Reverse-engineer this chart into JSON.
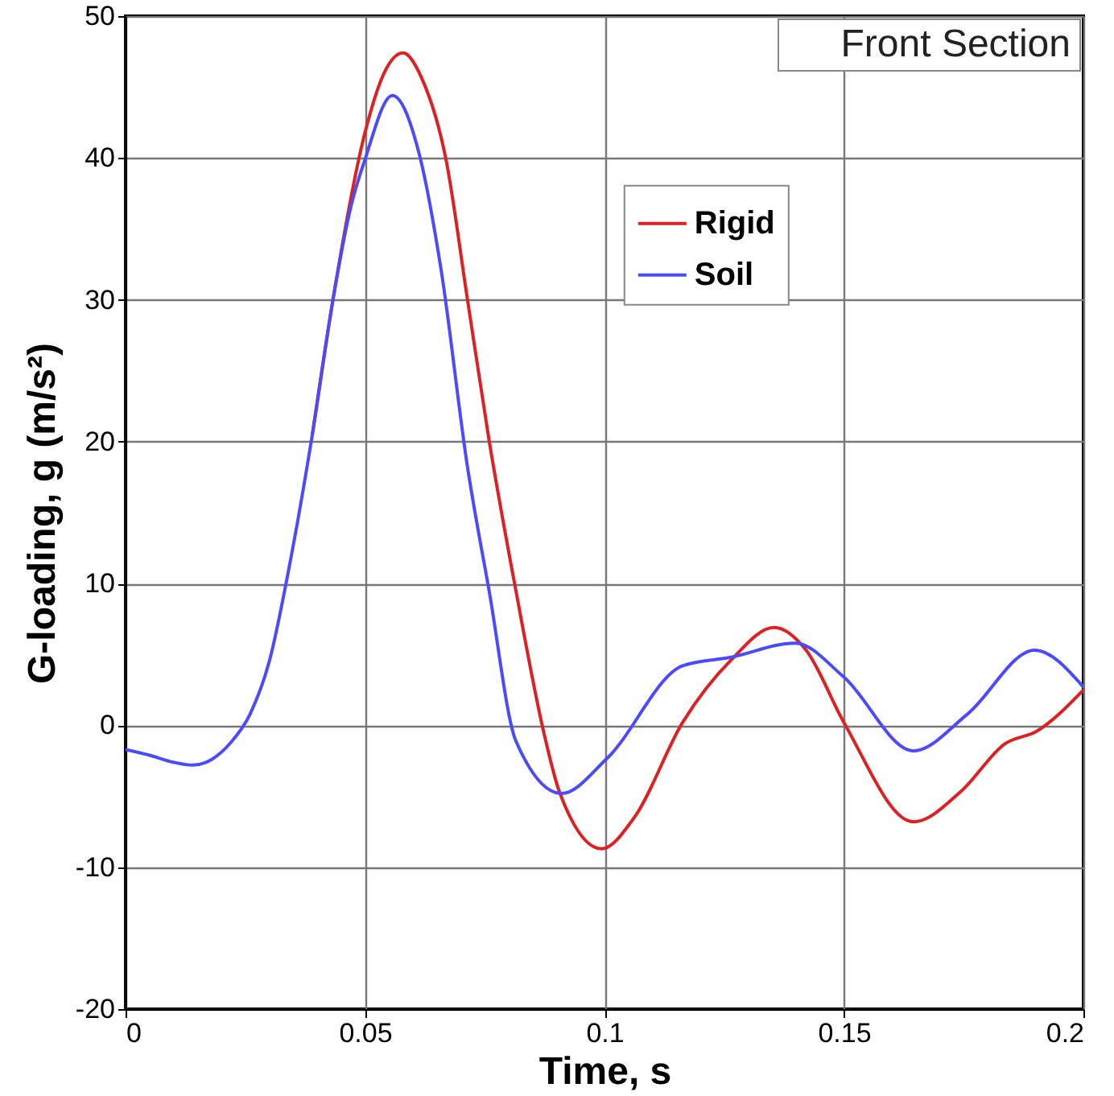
{
  "chart_data": {
    "type": "line",
    "xlabel": "Time, s",
    "ylabel": "G-loading, g (m/s²)",
    "xlim": [
      0,
      0.2
    ],
    "ylim": [
      -20,
      50
    ],
    "xticks": [
      0,
      0.05,
      0.1,
      0.15,
      0.2
    ],
    "yticks": [
      -20,
      -10,
      0,
      10,
      20,
      30,
      40,
      50
    ],
    "grid": true,
    "legend": "top right",
    "line_style": "solid",
    "annotations": [
      "Front Section"
    ],
    "series": [
      {
        "name": "Rigid",
        "color": "#e02020",
        "x": [
          0.039,
          0.0433,
          0.05,
          0.054,
          0.0579,
          0.062,
          0.0669,
          0.0714,
          0.0759,
          0.0815,
          0.0876,
          0.0905,
          0.0994,
          0.1062,
          0.1163,
          0.1264,
          0.1354,
          0.1421,
          0.15,
          0.1645,
          0.1746,
          0.1836,
          0.1903,
          0.2
        ],
        "values": [
          20.5,
          30,
          41.8,
          46,
          47.4,
          45.5,
          39.9,
          30,
          20.1,
          9.5,
          -0.9,
          -4.6,
          -8.7,
          -6.5,
          0.2,
          4.6,
          6.9,
          5.3,
          0.2,
          -6.8,
          -4.6,
          -1.3,
          -0.4,
          2.5
        ]
      },
      {
        "name": "Soil",
        "color": "#4a4aff",
        "x": [
          0,
          0.005,
          0.01,
          0.014,
          0.018,
          0.022,
          0.026,
          0.03,
          0.0343,
          0.039,
          0.0433,
          0.047,
          0.05,
          0.0557,
          0.0613,
          0.0658,
          0.0714,
          0.0759,
          0.0815,
          0.091,
          0.1006,
          0.1163,
          0.1264,
          0.1398,
          0.15,
          0.1645,
          0.1758,
          0.1898,
          0.2
        ],
        "values": [
          -1.7,
          -2.1,
          -2.6,
          -2.8,
          -2.4,
          -1.2,
          0.8,
          4.5,
          11.4,
          20.5,
          30,
          36.5,
          39.9,
          44.4,
          40.3,
          32.3,
          18.2,
          9.5,
          -1.1,
          -4.8,
          -2.3,
          4.2,
          4.8,
          5.8,
          3.4,
          -1.8,
          0.8,
          5.3,
          2.7
        ]
      }
    ]
  }
}
